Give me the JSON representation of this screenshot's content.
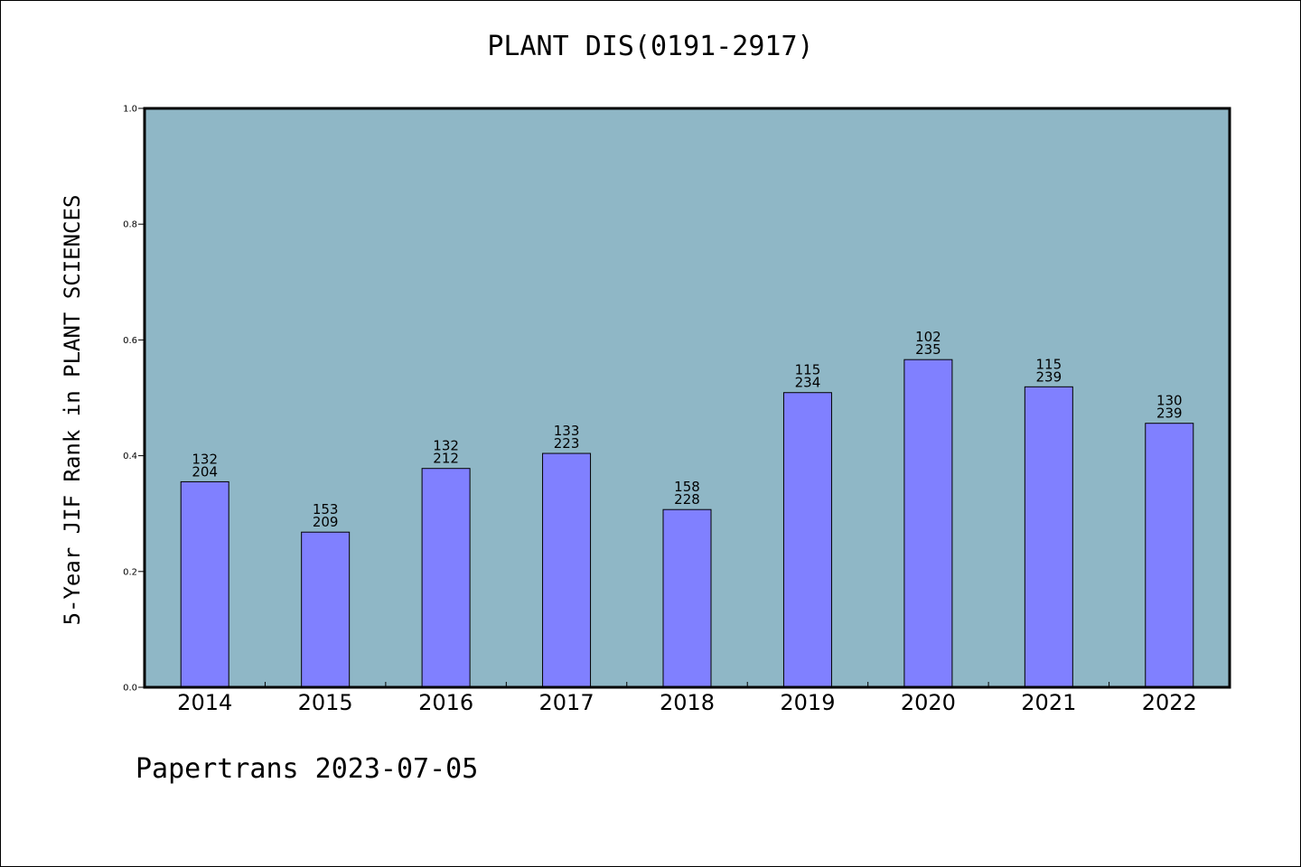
{
  "chart_data": {
    "type": "bar",
    "title": "PLANT DIS(0191-2917)",
    "ylabel": "5-Year JIF Rank in PLANT SCIENCES",
    "xlabel": "",
    "ylim": [
      0,
      1.0
    ],
    "yticks": [
      "0.0",
      "0.2",
      "0.4",
      "0.6",
      "0.8",
      "1.0"
    ],
    "categories": [
      "2014",
      "2015",
      "2016",
      "2017",
      "2018",
      "2019",
      "2020",
      "2021",
      "2022"
    ],
    "values": [
      0.355,
      0.268,
      0.378,
      0.404,
      0.307,
      0.509,
      0.566,
      0.519,
      0.456
    ],
    "rank_labels": [
      [
        "132",
        "204"
      ],
      [
        "153",
        "209"
      ],
      [
        "132",
        "212"
      ],
      [
        "133",
        "223"
      ],
      [
        "158",
        "228"
      ],
      [
        "115",
        "234"
      ],
      [
        "102",
        "235"
      ],
      [
        "115",
        "239"
      ],
      [
        "130",
        "239"
      ]
    ],
    "colors": {
      "plot_bg": "#8fb7c6",
      "bar": "#8080ff"
    },
    "grid": false,
    "legend": "none"
  },
  "footer": "Papertrans 2023-07-05"
}
